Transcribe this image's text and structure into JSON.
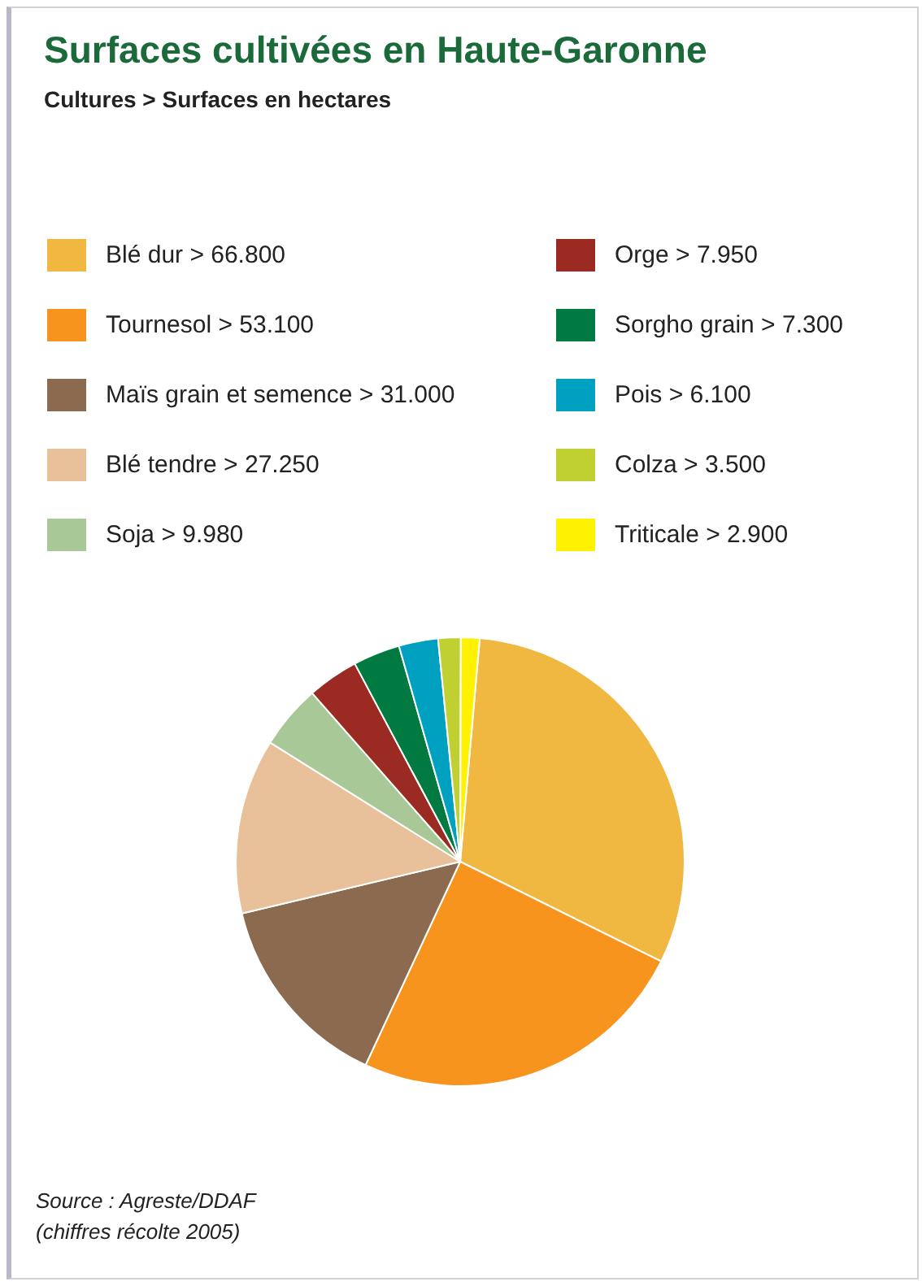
{
  "chart_data": {
    "type": "pie",
    "title": "Surfaces cultivées en Haute-Garonne",
    "subtitle": "Cultures > Surfaces en hectares",
    "categories": [
      "Blé dur > 66.800",
      "Tournesol > 53.100",
      "Maïs grain et semence > 31.000",
      "Blé tendre > 27.250",
      "Soja > 9.980",
      "Orge > 7.950",
      "Sorgho grain > 7.300",
      "Pois > 6.100",
      "Colza > 3.500",
      "Triticale > 2.900"
    ],
    "values": [
      66800,
      53100,
      31000,
      27250,
      9980,
      7950,
      7300,
      6100,
      3500,
      2900
    ],
    "colors": [
      "#f0b840",
      "#f7941d",
      "#8b6a50",
      "#e8c09a",
      "#a8c898",
      "#9b2a22",
      "#007a40",
      "#00a0c0",
      "#c0d030",
      "#fff200"
    ],
    "legend": "top",
    "annotations": [
      "Source : Agreste/DDAF",
      "(chiffres récolte 2005)"
    ]
  }
}
